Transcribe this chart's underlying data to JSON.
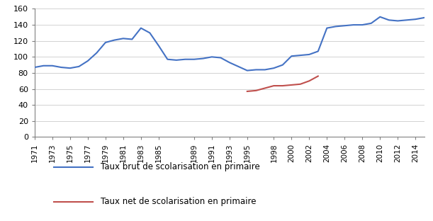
{
  "blue_series": {
    "years": [
      1971,
      1972,
      1973,
      1974,
      1975,
      1976,
      1977,
      1978,
      1979,
      1980,
      1981,
      1982,
      1983,
      1984,
      1985,
      1986,
      1987,
      1988,
      1989,
      1990,
      1991,
      1992,
      1993,
      1994,
      1995,
      1996,
      1997,
      1998,
      1999,
      2000,
      2001,
      2002,
      2003,
      2004,
      2005,
      2006,
      2007,
      2008,
      2009,
      2010,
      2011,
      2012,
      2013,
      2014,
      2015
    ],
    "values": [
      87,
      89,
      89,
      87,
      86,
      88,
      95,
      105,
      118,
      121,
      123,
      122,
      136,
      130,
      114,
      97,
      96,
      97,
      97,
      98,
      100,
      99,
      93,
      88,
      83,
      84,
      84,
      86,
      90,
      101,
      102,
      103,
      107,
      136,
      138,
      139,
      140,
      140,
      142,
      150,
      146,
      145,
      146,
      147,
      149
    ],
    "color": "#4472C4",
    "label": "Taux brut de scolarisation en primaire"
  },
  "red_series": {
    "years": [
      1995,
      1996,
      1998,
      1999,
      2000,
      2001,
      2002,
      2003
    ],
    "values": [
      57,
      58,
      64,
      64,
      65,
      66,
      70,
      76
    ],
    "color": "#C0504D",
    "label": "Taux net de scolarisation en primaire"
  },
  "ylim": [
    0,
    160
  ],
  "yticks": [
    0,
    20,
    40,
    60,
    80,
    100,
    120,
    140,
    160
  ],
  "xticks": [
    1971,
    1973,
    1975,
    1977,
    1979,
    1981,
    1983,
    1985,
    1989,
    1991,
    1993,
    1995,
    1998,
    2000,
    2002,
    2004,
    2006,
    2008,
    2010,
    2012,
    2014
  ],
  "xlim": [
    1971,
    2015
  ],
  "grid_color": "#C0C0C0",
  "background_color": "#FFFFFF",
  "spine_color": "#808080",
  "tick_color": "#808080"
}
